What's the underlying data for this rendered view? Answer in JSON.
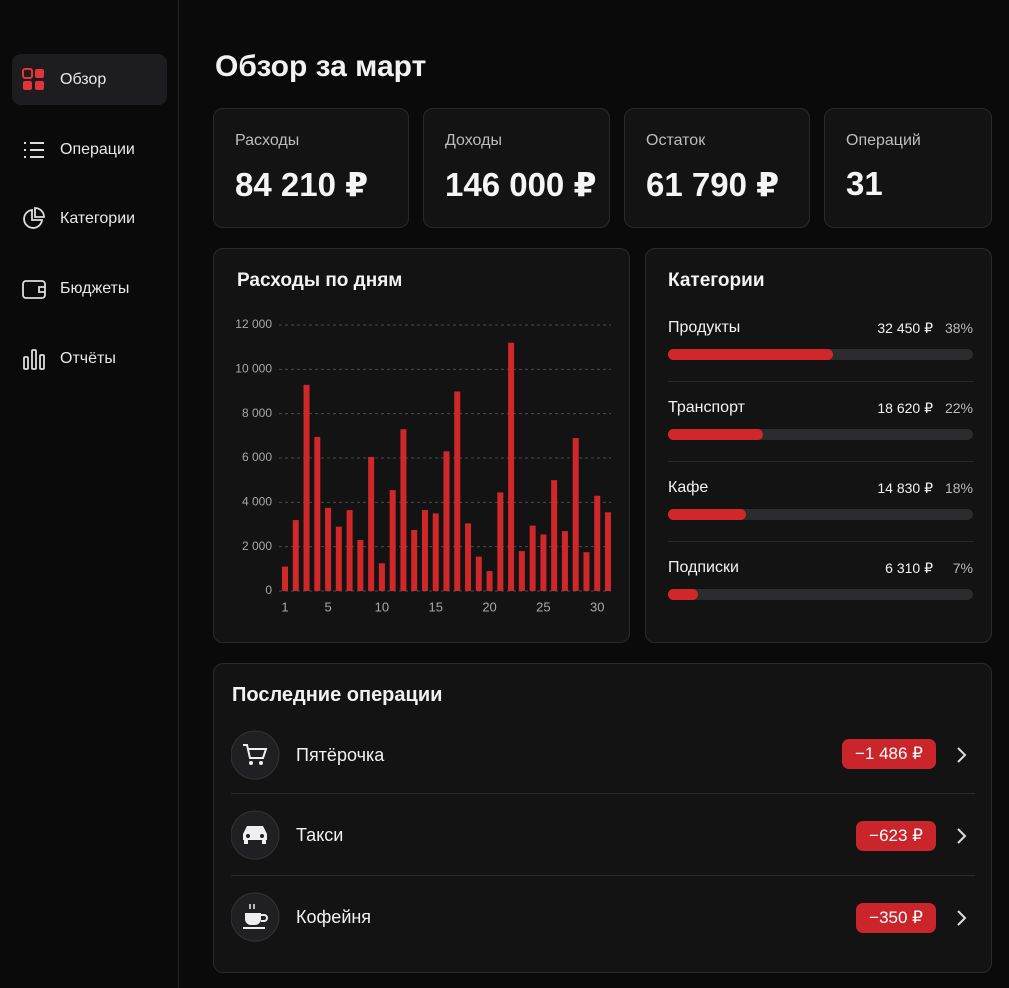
{
  "nav": [
    {
      "label": "Обзор",
      "active": true
    },
    {
      "label": "Операции"
    },
    {
      "label": "Категории"
    },
    {
      "label": "Бюджеты"
    },
    {
      "label": "Отчёты"
    }
  ],
  "header": {
    "title": "Обзор за март"
  },
  "stats": [
    {
      "label": "Расходы",
      "value": "84 210 ₽"
    },
    {
      "label": "Доходы",
      "value": "146 000 ₽"
    },
    {
      "label": "Остаток",
      "value": "61 790 ₽"
    },
    {
      "label": "Операций",
      "value": "31"
    }
  ],
  "chart_data": {
    "type": "bar",
    "title": "Расходы по дням",
    "color": "#d0272b",
    "grid": true,
    "categories": [
      "1",
      null,
      null,
      null,
      "5",
      null,
      null,
      null,
      null,
      "10",
      null,
      null,
      null,
      null,
      "15",
      null,
      null,
      null,
      null,
      "20",
      null,
      null,
      null,
      null,
      "25",
      null,
      null,
      null,
      null,
      "30",
      null
    ],
    "values": [
      1100,
      3200,
      9300,
      6950,
      3750,
      2900,
      3650,
      2300,
      6050,
      1250,
      4550,
      7300,
      2750,
      3650,
      3500,
      6300,
      9000,
      3050,
      1550,
      900,
      4450,
      11200,
      1800,
      2950,
      2550,
      5000,
      2700,
      6900,
      1750,
      4300,
      3550
    ],
    "ylim": [
      0,
      12000
    ],
    "yticks": [
      0,
      {
        "value": 2000,
        "label": "2 000"
      },
      {
        "value": 4000,
        "label": "4 000"
      },
      {
        "value": 6000,
        "label": "6 000"
      },
      {
        "value": 8000,
        "label": "8 000"
      },
      {
        "value": 10000,
        "label": "10 000"
      },
      {
        "value": 12000,
        "label": "12 000"
      }
    ]
  },
  "categories": {
    "title": "Категории",
    "items": [
      {
        "name": "Продукты",
        "amount": "32 450 ₽",
        "share": 38,
        "share_label": "38%"
      },
      {
        "name": "Транспорт",
        "amount": "18 620 ₽",
        "share": 22,
        "share_label": "22%"
      },
      {
        "name": "Кафе",
        "amount": "14 830 ₽",
        "share": 18,
        "share_label": "18%"
      },
      {
        "name": "Подписки",
        "amount": "6 310 ₽",
        "share": 7,
        "share_label": "7%"
      }
    ]
  },
  "recent": {
    "title": "Последние операции",
    "items": [
      {
        "name": "Пятёрочка",
        "amount": "−1 486 ₽"
      },
      {
        "name": "Такси",
        "amount": "−623 ₽"
      },
      {
        "name": "Кофейня",
        "amount": "−350 ₽"
      }
    ]
  }
}
